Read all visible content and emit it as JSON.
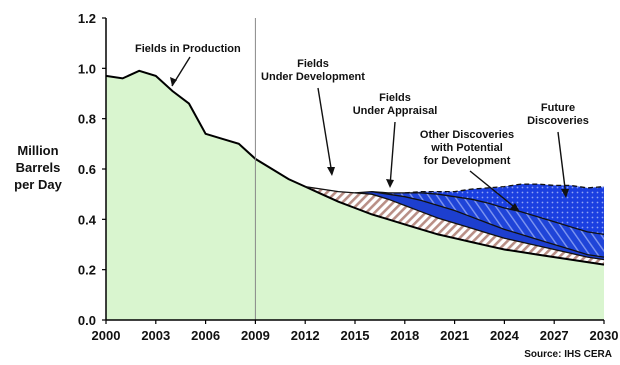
{
  "chart_data": {
    "type": "area",
    "ylabel": [
      "Million",
      "Barrels",
      "per Day"
    ],
    "source": "Source: IHS CERA",
    "xlim": [
      2000,
      2030
    ],
    "ylim": [
      0,
      1.2
    ],
    "x_ticks": [
      "2000",
      "2003",
      "2006",
      "2009",
      "2012",
      "2015",
      "2018",
      "2021",
      "2024",
      "2027",
      "2030"
    ],
    "y_ticks": [
      "0.0",
      "0.2",
      "0.4",
      "0.6",
      "0.8",
      "1.0",
      "1.2"
    ],
    "divider_year": 2009,
    "series": [
      {
        "name": "Fields in Production",
        "color": "#d9f5cf",
        "x": [
          2000,
          2001,
          2002,
          2003,
          2004,
          2005,
          2006,
          2007,
          2008,
          2009,
          2010,
          2011,
          2012,
          2013,
          2014,
          2015,
          2016,
          2017,
          2018,
          2019,
          2020,
          2021,
          2022,
          2023,
          2024,
          2025,
          2026,
          2027,
          2028,
          2029,
          2030
        ],
        "y": [
          0.97,
          0.96,
          0.99,
          0.97,
          0.91,
          0.86,
          0.74,
          0.72,
          0.7,
          0.64,
          0.6,
          0.56,
          0.53,
          0.5,
          0.47,
          0.445,
          0.42,
          0.4,
          0.38,
          0.36,
          0.34,
          0.325,
          0.31,
          0.295,
          0.28,
          0.27,
          0.26,
          0.25,
          0.24,
          0.23,
          0.22
        ]
      },
      {
        "name": "Fields Under Development",
        "color": "#c9a49b",
        "pattern": "hatch",
        "x": [
          2012,
          2013,
          2014,
          2015,
          2016,
          2017,
          2018,
          2019,
          2020,
          2021,
          2022,
          2023,
          2024,
          2025,
          2026,
          2027,
          2028,
          2029,
          2030
        ],
        "y": [
          0.0,
          0.02,
          0.04,
          0.06,
          0.08,
          0.08,
          0.075,
          0.07,
          0.065,
          0.06,
          0.055,
          0.05,
          0.045,
          0.04,
          0.035,
          0.03,
          0.025,
          0.02,
          0.02
        ]
      },
      {
        "name": "Fields Under Appraisal",
        "color": "#1d3fcf",
        "x": [
          2015,
          2016,
          2017,
          2018,
          2019,
          2020,
          2021,
          2022,
          2023,
          2024,
          2025,
          2026,
          2027,
          2028,
          2029,
          2030
        ],
        "y": [
          0.0,
          0.01,
          0.02,
          0.035,
          0.045,
          0.05,
          0.05,
          0.045,
          0.04,
          0.035,
          0.03,
          0.025,
          0.02,
          0.015,
          0.01,
          0.01
        ]
      },
      {
        "name": "Other Discoveries with Potential for Development",
        "color": "#2347e0",
        "pattern": "diagonal",
        "x": [
          2016,
          2017,
          2018,
          2019,
          2020,
          2021,
          2022,
          2023,
          2024,
          2025,
          2026,
          2027,
          2028,
          2029,
          2030
        ],
        "y": [
          0.0,
          0.005,
          0.015,
          0.03,
          0.045,
          0.055,
          0.07,
          0.08,
          0.085,
          0.09,
          0.09,
          0.09,
          0.09,
          0.09,
          0.09
        ]
      },
      {
        "name": "Future Discoveries",
        "color": "#1a3fe0",
        "pattern": "dots",
        "x": [
          2018,
          2019,
          2020,
          2021,
          2022,
          2023,
          2024,
          2025,
          2026,
          2027,
          2028,
          2029,
          2030
        ],
        "y": [
          0.0,
          0.005,
          0.01,
          0.02,
          0.04,
          0.06,
          0.085,
          0.11,
          0.13,
          0.145,
          0.165,
          0.175,
          0.19
        ]
      }
    ],
    "annotations": [
      {
        "lines": [
          "Fields in Production"
        ]
      },
      {
        "lines": [
          "Fields",
          "Under Development"
        ]
      },
      {
        "lines": [
          "Fields",
          "Under Appraisal"
        ]
      },
      {
        "lines": [
          "Other Discoveries",
          "with Potential",
          "for Development"
        ]
      },
      {
        "lines": [
          "Future",
          "Discoveries"
        ]
      }
    ]
  }
}
